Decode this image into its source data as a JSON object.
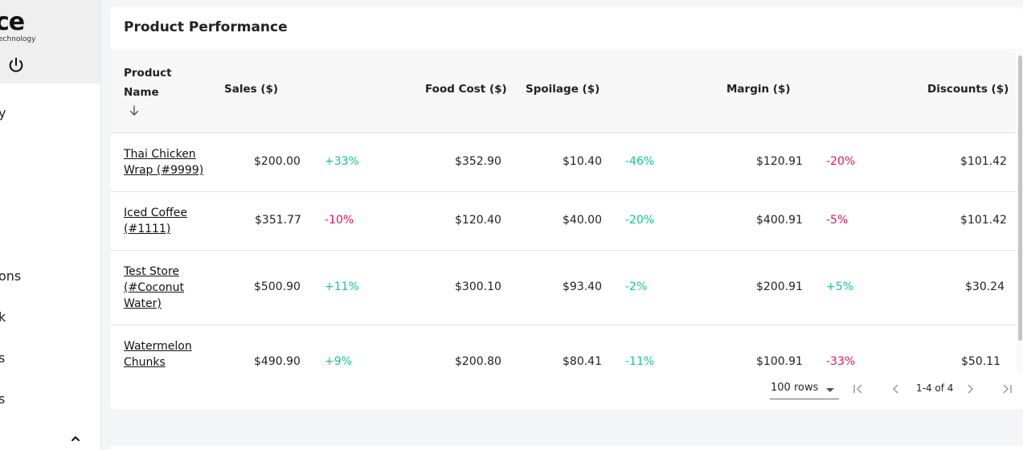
{
  "sidebar": {
    "logo": "ce",
    "logo_sub": "echnology",
    "items": [
      {
        "label": "y"
      },
      {
        "label": "ons"
      },
      {
        "label": "k"
      },
      {
        "label": "s"
      },
      {
        "label": "s"
      }
    ]
  },
  "card": {
    "title": "Product Performance",
    "columns": {
      "name": "Product Name",
      "sales": "Sales ($)",
      "food_cost": "Food Cost ($)",
      "spoilage": "Spoilage ($)",
      "margin": "Margin ($)",
      "discounts": "Discounts ($)"
    },
    "rows": [
      {
        "name": "Thai Chicken Wrap (#9999)",
        "sales": "$200.00",
        "sales_delta": "+33%",
        "food_cost": "$352.90",
        "spoilage": "$10.40",
        "spoilage_delta": "-46%",
        "margin": "$120.91",
        "margin_delta": "-20%",
        "discounts": "$101.42"
      },
      {
        "name": "Iced Coffee (#1111)",
        "sales": "$351.77",
        "sales_delta": "-10%",
        "food_cost": "$120.40",
        "spoilage": "$40.00",
        "spoilage_delta": "-20%",
        "margin": "$400.91",
        "margin_delta": "-5%",
        "discounts": "$101.42"
      },
      {
        "name": "Test Store (#Coconut Water)",
        "sales": "$500.90",
        "sales_delta": "+11%",
        "food_cost": "$300.10",
        "spoilage": "$93.40",
        "spoilage_delta": "-2%",
        "margin": "$200.91",
        "margin_delta": "+5%",
        "discounts": "$30.24"
      },
      {
        "name": "Watermelon Chunks",
        "sales": "$490.90",
        "sales_delta": "+9%",
        "food_cost": "$200.80",
        "spoilage": "$80.41",
        "spoilage_delta": "-11%",
        "margin": "$100.91",
        "margin_delta": "-33%",
        "discounts": "$50.11"
      }
    ]
  },
  "pagination": {
    "rows_per_page": "100 rows",
    "range": "1-4 of 4"
  },
  "colors": {
    "positive": "#14c39e",
    "negative": "#e0165e"
  }
}
